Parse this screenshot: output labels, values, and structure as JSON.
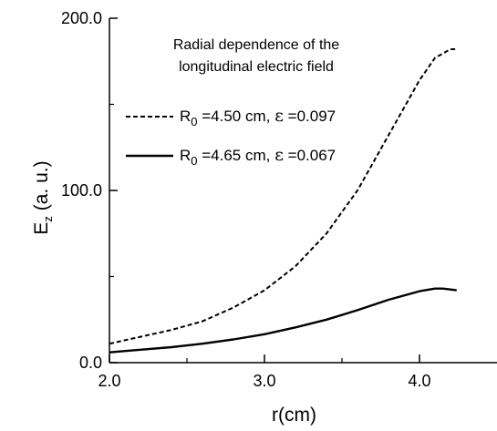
{
  "chart_data": {
    "type": "line",
    "annotation": [
      "Radial dependence of the",
      "longitudinal electric field"
    ],
    "xlabel": "r(cm)",
    "ylabel": {
      "main": "E",
      "sub": "z",
      "rest": " (a. u.)"
    },
    "xlim": [
      2.0,
      4.5
    ],
    "ylim": [
      0.0,
      200.0
    ],
    "x_ticks": [
      2.0,
      3.0,
      4.0
    ],
    "x_tick_labels": [
      "2.0",
      "3.0",
      "4.0"
    ],
    "y_ticks": [
      0.0,
      100.0,
      200.0
    ],
    "y_tick_labels": [
      "0.0",
      "100.0",
      "200.0"
    ],
    "y_minor_ticks": [
      50.0,
      150.0
    ],
    "x_minor_ticks": [
      2.5,
      3.5
    ],
    "grid": false,
    "series": [
      {
        "name_parts": {
          "R": "R",
          "sub": "0",
          "value": " =4.50 cm, ",
          "eps": "ε",
          "eps_value": " =0.097"
        },
        "style": "dashed",
        "x": [
          2.0,
          2.2,
          2.4,
          2.6,
          2.8,
          3.0,
          3.2,
          3.4,
          3.6,
          3.7,
          3.8,
          3.9,
          4.0,
          4.1,
          4.2,
          4.24
        ],
        "y": [
          11,
          15,
          19,
          24,
          32,
          42,
          56,
          75,
          100,
          116,
          132,
          148,
          164,
          177,
          182,
          182
        ]
      },
      {
        "name_parts": {
          "R": "R",
          "sub": "0",
          "value": " =4.65 cm, ",
          "eps": "ε",
          "eps_value": " =0.067"
        },
        "style": "solid",
        "x": [
          2.0,
          2.2,
          2.4,
          2.6,
          2.8,
          3.0,
          3.2,
          3.4,
          3.6,
          3.8,
          4.0,
          4.1,
          4.15,
          4.2,
          4.24
        ],
        "y": [
          6,
          7.5,
          9,
          11,
          13.5,
          16.5,
          20.5,
          25,
          30.5,
          36.5,
          41.5,
          43,
          43,
          42.5,
          42
        ]
      }
    ]
  }
}
